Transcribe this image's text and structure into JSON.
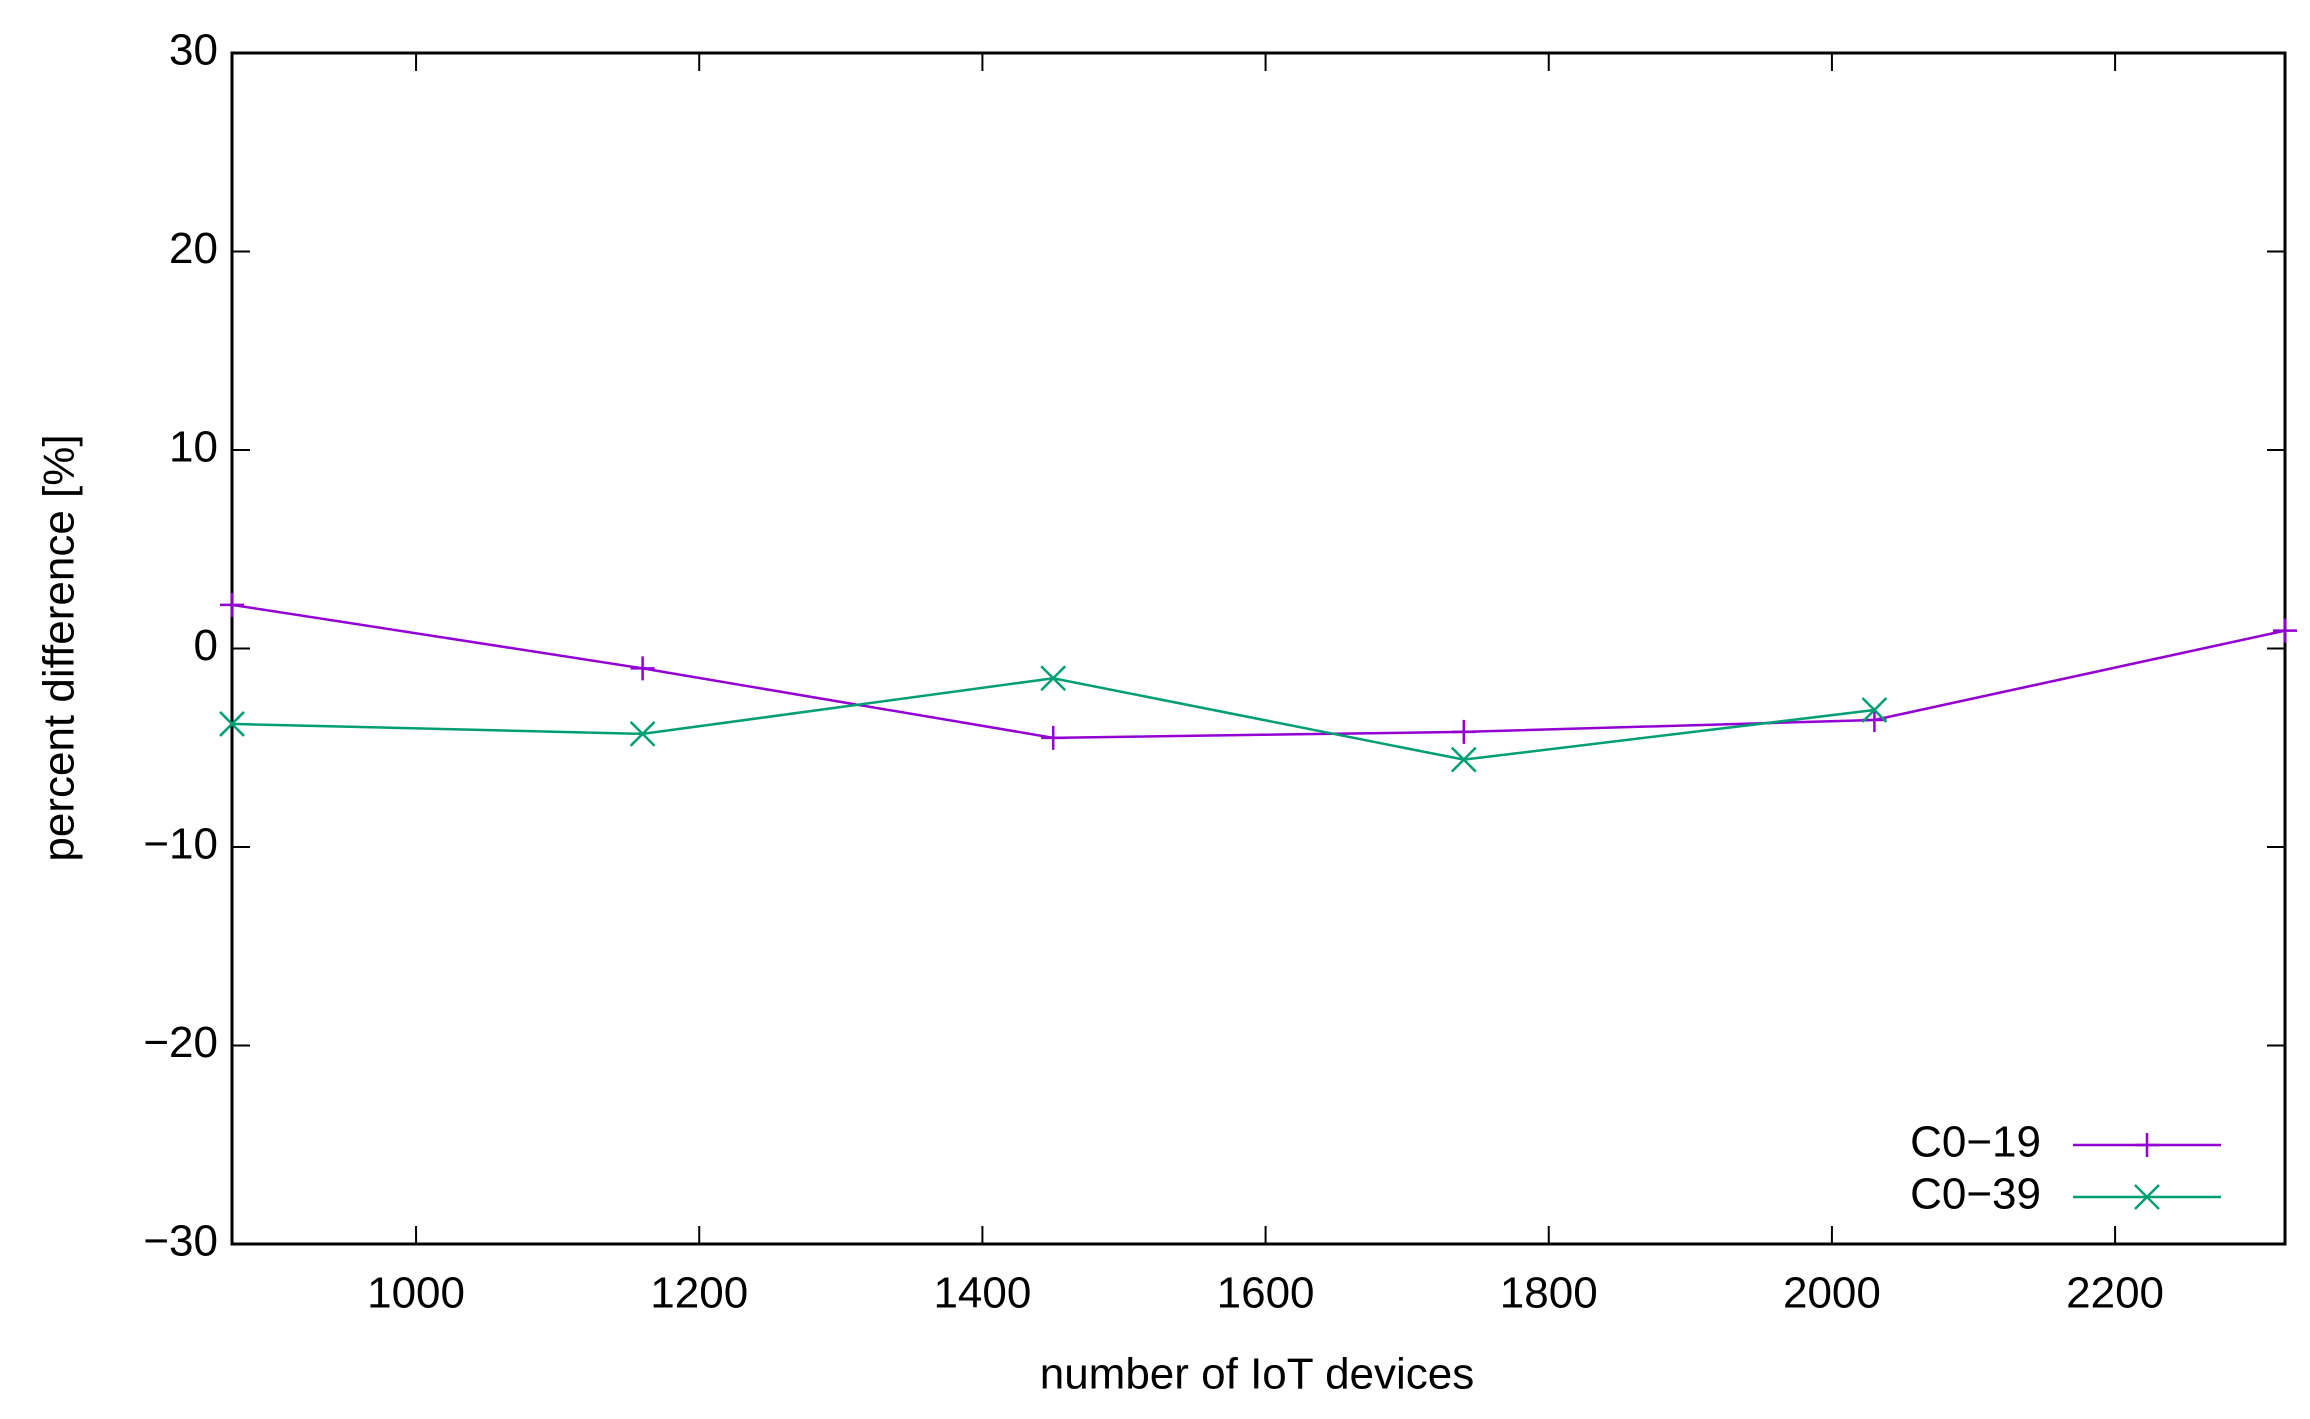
{
  "chart_data": {
    "type": "line",
    "x_label": "number of IoT devices",
    "y_label": "percent difference [%]",
    "x": [
      870,
      1160,
      1450,
      1740,
      2030,
      2320
    ],
    "series": [
      {
        "name": "C0−19",
        "color": "#9400d3",
        "marker": "plus",
        "values": [
          2.2,
          -1.0,
          -4.5,
          -4.2,
          -3.6,
          0.9
        ]
      },
      {
        "name": "C0−39",
        "color": "#009e73",
        "marker": "cross",
        "values": [
          -3.8,
          -4.3,
          -1.5,
          -5.6,
          -3.1,
          null
        ]
      }
    ],
    "xlim": [
      870,
      2320
    ],
    "xticks": [
      1000,
      1200,
      1400,
      1600,
      1800,
      2000,
      2200
    ],
    "ylim": [
      -30,
      30
    ],
    "yticks": [
      {
        "value": -30,
        "label": "−30"
      },
      {
        "value": -20,
        "label": "−20"
      },
      {
        "value": -10,
        "label": "−10"
      },
      0,
      10,
      20,
      30
    ],
    "legend": "bottom-right",
    "grid": false
  }
}
